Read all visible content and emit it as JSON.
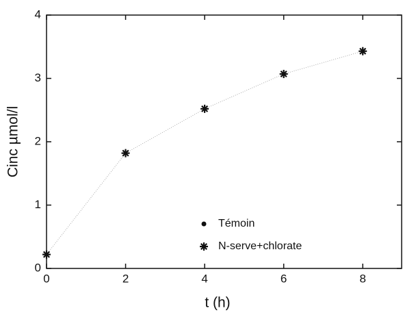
{
  "chart_data": {
    "type": "scatter",
    "x_label": "t (h)",
    "y_label": "Cinc µmol/l",
    "xlim": [
      0,
      9
    ],
    "ylim": [
      0,
      4
    ],
    "xticks": [
      0,
      2,
      4,
      6,
      8
    ],
    "yticks": [
      0,
      1,
      2,
      3,
      4
    ],
    "x": [
      0,
      2,
      4,
      6,
      8
    ],
    "series": [
      {
        "name": "Témoin",
        "marker": "dot",
        "color": "#111111",
        "values": [
          null,
          null,
          null,
          null,
          null
        ]
      },
      {
        "name": "N-serve+chlorate",
        "marker": "star",
        "color": "#111111",
        "values": [
          0.22,
          1.82,
          2.52,
          3.07,
          3.43
        ]
      }
    ],
    "legend": "bottom-right"
  }
}
